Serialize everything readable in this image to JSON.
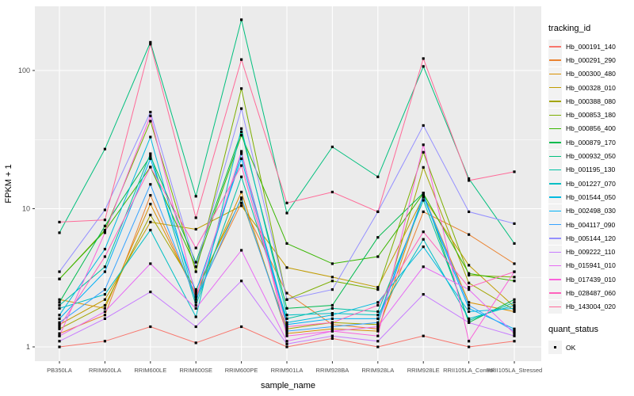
{
  "figure": {
    "x_axis_title": "sample_name",
    "y_axis_title": "FPKM + 1",
    "y_tick_labels": [
      "1",
      "10",
      "100"
    ]
  },
  "legend": {
    "tracking_title": "tracking_id",
    "quant_title": "quant_status",
    "quant_items": [
      {
        "label": "OK",
        "marker": "black-square"
      }
    ]
  },
  "chart_data": {
    "type": "line",
    "title": "",
    "xlabel": "sample_name",
    "ylabel": "FPKM + 1",
    "x_type": "categorical",
    "y_scale": "log10",
    "ylim": [
      1,
      260
    ],
    "yticks": [
      1,
      10,
      100
    ],
    "y_minor_ticks": [
      3.162,
      31.62
    ],
    "grid": true,
    "panel_bg": "#EBEBEB",
    "grid_color": "#FFFFFF",
    "marker": "black-square",
    "marker_color": "#000000",
    "legend_position": "right",
    "categories": [
      "PB350LA",
      "RRIM600LA",
      "RRIM600LE",
      "RRIM600SE",
      "RRIM600PE",
      "RRIM901LA",
      "RRIM928BA",
      "RRIM928LA",
      "RRIM928LE",
      "RRII105LA_Control",
      "RRII105LA_Stressed"
    ],
    "series": [
      {
        "name": "Hb_000191_140",
        "color": "#F8766D",
        "values": [
          1.0,
          1.1,
          1.4,
          1.07,
          1.4,
          1.0,
          1.15,
          1.0,
          1.2,
          1.0,
          1.1
        ]
      },
      {
        "name": "Hb_000291_290",
        "color": "#EA8331",
        "values": [
          1.25,
          1.7,
          12.5,
          2.3,
          11,
          2.45,
          1.45,
          1.35,
          9.5,
          6.5,
          4.0
        ]
      },
      {
        "name": "Hb_000300_480",
        "color": "#D89000",
        "values": [
          2.2,
          1.9,
          10.8,
          2.4,
          13.2,
          1.25,
          1.35,
          1.3,
          12.5,
          2.1,
          1.8
        ]
      },
      {
        "name": "Hb_000328_010",
        "color": "#C09B00",
        "values": [
          1.45,
          2.2,
          8.0,
          7.1,
          10.5,
          3.75,
          3.2,
          2.7,
          12.1,
          3.9,
          1.95
        ]
      },
      {
        "name": "Hb_000388_080",
        "color": "#A3A500",
        "values": [
          1.35,
          2.0,
          9.0,
          2.6,
          11.7,
          1.35,
          1.5,
          1.45,
          19.9,
          2.9,
          1.85
        ]
      },
      {
        "name": "Hb_000853_180",
        "color": "#7CAE00",
        "values": [
          3.1,
          7.0,
          43,
          3.5,
          74,
          2.2,
          3.0,
          2.6,
          25.6,
          3.3,
          3.2
        ]
      },
      {
        "name": "Hb_000856_400",
        "color": "#39B600",
        "values": [
          3.1,
          6.9,
          20,
          3.8,
          34,
          5.6,
          4.0,
          4.5,
          12.9,
          3.4,
          3.0
        ]
      },
      {
        "name": "Hb_000879_170",
        "color": "#00BB4E",
        "values": [
          2.1,
          7.5,
          24,
          4.1,
          36,
          1.9,
          2.0,
          6.2,
          13,
          1.5,
          2.2
        ]
      },
      {
        "name": "Hb_000932_050",
        "color": "#00BF7D",
        "values": [
          6.7,
          27,
          160,
          12.3,
          233,
          9.3,
          28,
          17,
          107,
          16.5,
          5.6
        ]
      },
      {
        "name": "Hb_001195_130",
        "color": "#00C1A3",
        "values": [
          2.0,
          3.8,
          25,
          2.0,
          17,
          1.6,
          1.9,
          1.8,
          11.5,
          1.55,
          2.1
        ]
      },
      {
        "name": "Hb_001227_070",
        "color": "#00BFC4",
        "values": [
          1.9,
          2.4,
          7.0,
          1.65,
          38,
          1.7,
          1.75,
          1.7,
          6.0,
          1.6,
          2.0
        ]
      },
      {
        "name": "Hb_001544_050",
        "color": "#00BAE0",
        "values": [
          1.7,
          5.1,
          33,
          2.1,
          25,
          1.5,
          1.7,
          2.1,
          5.3,
          1.8,
          1.9
        ]
      },
      {
        "name": "Hb_002498_030",
        "color": "#00B0F6",
        "values": [
          1.6,
          3.5,
          23,
          2.5,
          23,
          1.45,
          1.6,
          1.6,
          12.2,
          1.9,
          1.35
        ]
      },
      {
        "name": "Hb_004117_090",
        "color": "#35A2FF",
        "values": [
          1.5,
          2.6,
          15,
          2.2,
          12,
          1.3,
          1.4,
          1.5,
          12.5,
          2.0,
          1.3
        ]
      },
      {
        "name": "Hb_005144_120",
        "color": "#9590FF",
        "values": [
          3.5,
          9.8,
          50,
          3.8,
          53,
          2.2,
          2.6,
          9.5,
          40,
          9.5,
          7.8
        ]
      },
      {
        "name": "Hb_009222_110",
        "color": "#C77CFF",
        "values": [
          1.1,
          1.6,
          2.5,
          1.4,
          3.0,
          1.05,
          1.2,
          1.1,
          2.4,
          1.5,
          1.2
        ]
      },
      {
        "name": "Hb_015941_010",
        "color": "#E76BF3",
        "values": [
          1.2,
          1.8,
          4.0,
          1.9,
          5.0,
          1.1,
          1.3,
          1.4,
          3.8,
          2.6,
          1.25
        ]
      },
      {
        "name": "Hb_017439_010",
        "color": "#FA62DB",
        "values": [
          1.2,
          6.7,
          47,
          2.3,
          26,
          1.2,
          1.3,
          1.2,
          29,
          1.1,
          3.5
        ]
      },
      {
        "name": "Hb_028487_060",
        "color": "#FF62BC",
        "values": [
          1.4,
          4.5,
          20,
          5.2,
          20.5,
          1.4,
          1.5,
          2.0,
          6.8,
          2.7,
          3.5
        ]
      },
      {
        "name": "Hb_143004_020",
        "color": "#FF6A98",
        "values": [
          8.0,
          8.3,
          155,
          8.6,
          120,
          11,
          13.2,
          9.5,
          122,
          16,
          18.5
        ]
      }
    ]
  }
}
